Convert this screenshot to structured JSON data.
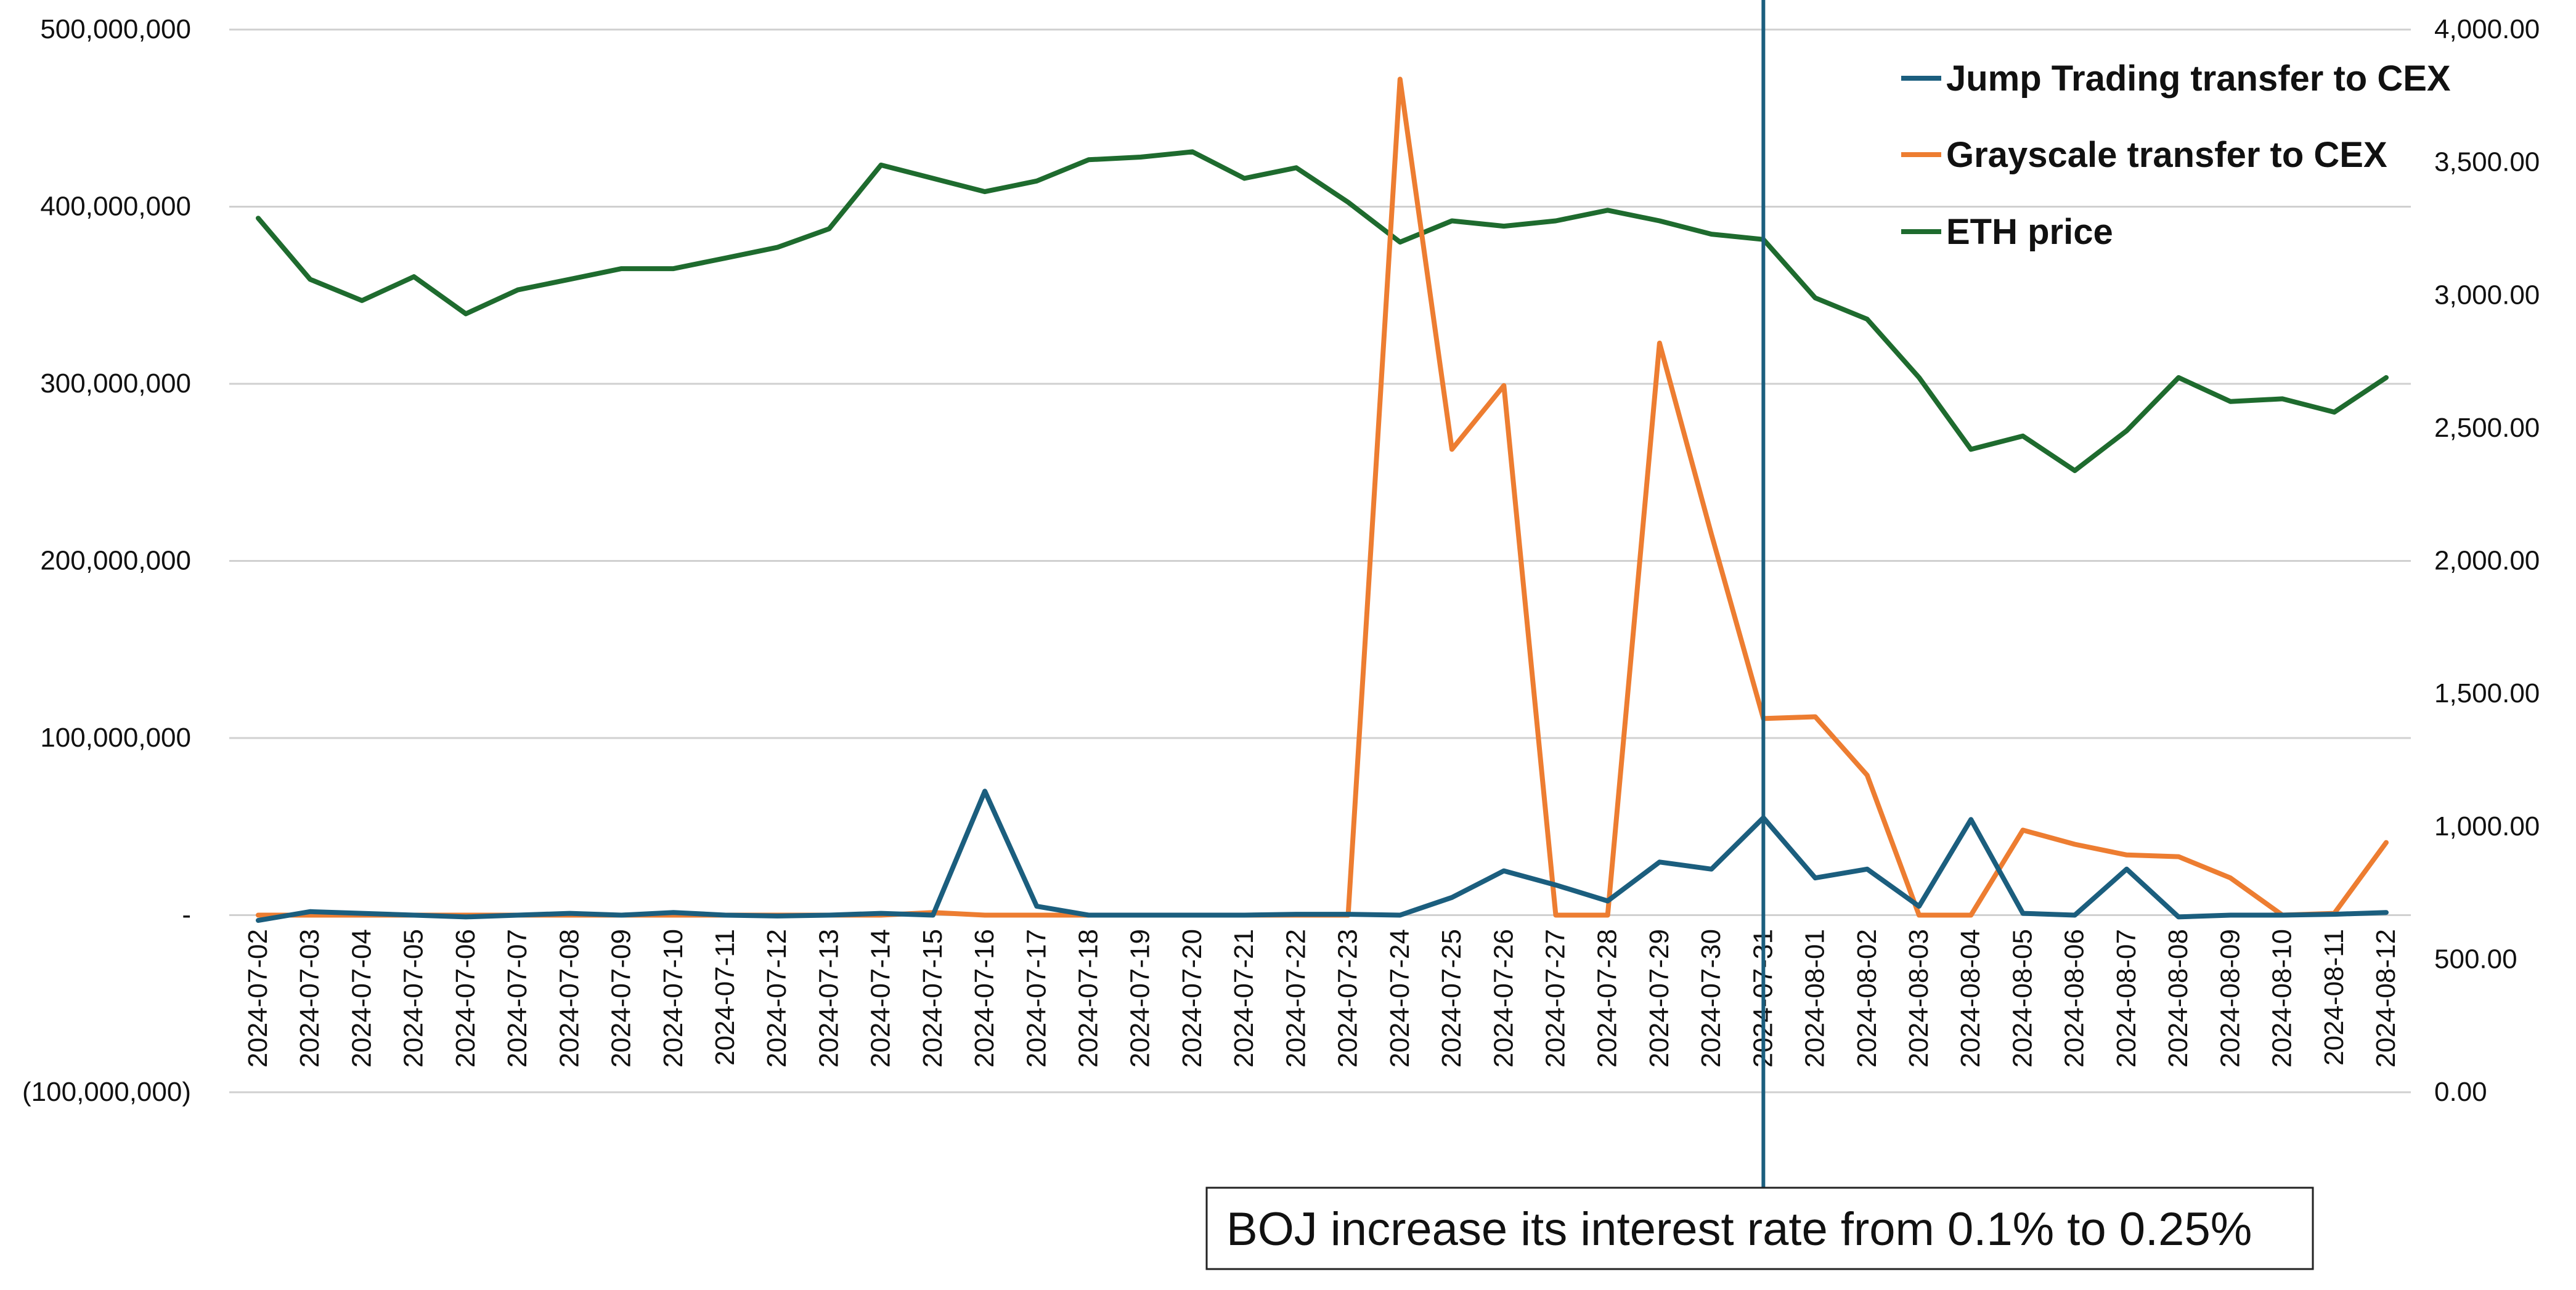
{
  "chart_data": {
    "type": "line",
    "title": "",
    "categories": [
      "2024-07-02",
      "2024-07-03",
      "2024-07-04",
      "2024-07-05",
      "2024-07-06",
      "2024-07-07",
      "2024-07-08",
      "2024-07-09",
      "2024-07-10",
      "2024-07-11",
      "2024-07-12",
      "2024-07-13",
      "2024-07-14",
      "2024-07-15",
      "2024-07-16",
      "2024-07-17",
      "2024-07-18",
      "2024-07-19",
      "2024-07-20",
      "2024-07-21",
      "2024-07-22",
      "2024-07-23",
      "2024-07-24",
      "2024-07-25",
      "2024-07-26",
      "2024-07-27",
      "2024-07-28",
      "2024-07-29",
      "2024-07-30",
      "2024-07-31",
      "2024-08-01",
      "2024-08-02",
      "2024-08-03",
      "2024-08-04",
      "2024-08-05",
      "2024-08-06",
      "2024-08-07",
      "2024-08-08",
      "2024-08-09",
      "2024-08-10",
      "2024-08-11",
      "2024-08-12"
    ],
    "y_left": {
      "range": [
        -100000000,
        500000000
      ],
      "ticks": [
        -100000000,
        0,
        100000000,
        200000000,
        300000000,
        400000000,
        500000000
      ],
      "tick_labels": [
        "(100,000,000)",
        "-",
        "100,000,000",
        "200,000,000",
        "300,000,000",
        "400,000,000",
        "500,000,000"
      ]
    },
    "y_right": {
      "range": [
        0,
        4000
      ],
      "ticks": [
        0,
        500,
        1000,
        1500,
        2000,
        2500,
        3000,
        3500,
        4000
      ],
      "tick_labels": [
        "0.00",
        "500.00",
        "1,000.00",
        "1,500.00",
        "2,000.00",
        "2,500.00",
        "3,000.00",
        "3,500.00",
        "4,000.00"
      ]
    },
    "grid": true,
    "legend_position": "top-right",
    "series": [
      {
        "name": "Jump Trading transfer to CEX",
        "axis": "left",
        "color": "#1b5e7e",
        "values": [
          -3000000,
          2000000,
          1000000,
          0,
          -1000000,
          0,
          1000000,
          0,
          1500000,
          0,
          -500000,
          0,
          1000000,
          0,
          70000000,
          5000000,
          0,
          0,
          0,
          0,
          500000,
          500000,
          0,
          10000000,
          25000000,
          17000000,
          8000000,
          30000000,
          26000000,
          55000000,
          21000000,
          26000000,
          5000000,
          54000000,
          1000000,
          0,
          26000000,
          -1000000,
          0,
          0,
          500000,
          1500000
        ]
      },
      {
        "name": "Grayscale transfer to CEX",
        "axis": "left",
        "color": "#ed7d31",
        "values": [
          0,
          0,
          0,
          0,
          0,
          0,
          0,
          0,
          0,
          0,
          0,
          0,
          0,
          1500000,
          0,
          0,
          0,
          0,
          0,
          0,
          0,
          0,
          472000000,
          263000000,
          299000000,
          0,
          0,
          323000000,
          215000000,
          111000000,
          112000000,
          79000000,
          0,
          0,
          48000000,
          40000000,
          34000000,
          33000000,
          21000000,
          0,
          1000000,
          41000000
        ]
      },
      {
        "name": "ETH price",
        "axis": "right",
        "color": "#1e6b2e",
        "values": [
          3290,
          3060,
          2980,
          3070,
          2930,
          3020,
          3060,
          3100,
          3100,
          3140,
          3180,
          3250,
          3490,
          3440,
          3390,
          3430,
          3510,
          3520,
          3540,
          3440,
          3480,
          3350,
          3200,
          3280,
          3260,
          3280,
          3320,
          3280,
          3230,
          3210,
          2990,
          2910,
          2690,
          2420,
          2470,
          2340,
          2490,
          2690,
          2600,
          2610,
          2560,
          2690
        ]
      }
    ],
    "annotation": {
      "text": "BOJ increase its interest rate from 0.1% to 0.25%",
      "at_category": "2024-07-31"
    }
  }
}
